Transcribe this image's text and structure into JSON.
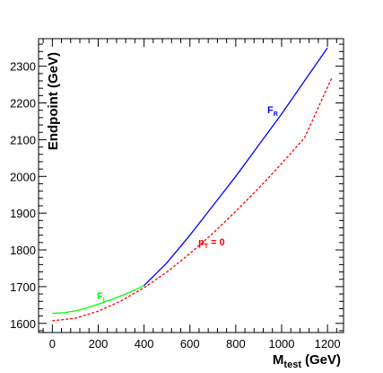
{
  "chart_data": {
    "type": "line",
    "xlabel": "M",
    "xlabel_sub": "test",
    "xlabel_unit": "(GeV)",
    "ylabel": "Endpoint (GeV)",
    "xlim": [
      -60,
      1270
    ],
    "ylim": [
      1575,
      2375
    ],
    "xticks": [
      0,
      200,
      400,
      600,
      800,
      1000,
      1200
    ],
    "yticks": [
      1600,
      1700,
      1800,
      1900,
      2000,
      2100,
      2200,
      2300
    ],
    "grid": false,
    "series": [
      {
        "name": "F_L",
        "label": "F",
        "label_sub": "L",
        "color": "#00ff00",
        "style": "solid",
        "x": [
          0,
          50,
          100,
          150,
          200,
          250,
          300,
          350,
          400
        ],
        "y": [
          1627,
          1629,
          1634,
          1642,
          1652,
          1663,
          1675,
          1688,
          1703
        ]
      },
      {
        "name": "F_R",
        "label": "F",
        "label_sub": "R",
        "color": "#0000ff",
        "style": "solid",
        "x": [
          400,
          500,
          600,
          700,
          800,
          900,
          1000,
          1100,
          1200
        ],
        "y": [
          1703,
          1765,
          1840,
          1920,
          2000,
          2085,
          2170,
          2260,
          2350
        ]
      },
      {
        "name": "p_T = 0",
        "label": "p",
        "label_sub": "T",
        "label_suffix": " = 0",
        "color": "#ff0000",
        "style": "dashed",
        "x": [
          0,
          100,
          200,
          300,
          400,
          500,
          600,
          700,
          800,
          900,
          1000,
          1100,
          1220
        ],
        "y": [
          1607,
          1614,
          1633,
          1661,
          1697,
          1740,
          1790,
          1845,
          1905,
          1968,
          2035,
          2105,
          2270
        ]
      }
    ]
  }
}
